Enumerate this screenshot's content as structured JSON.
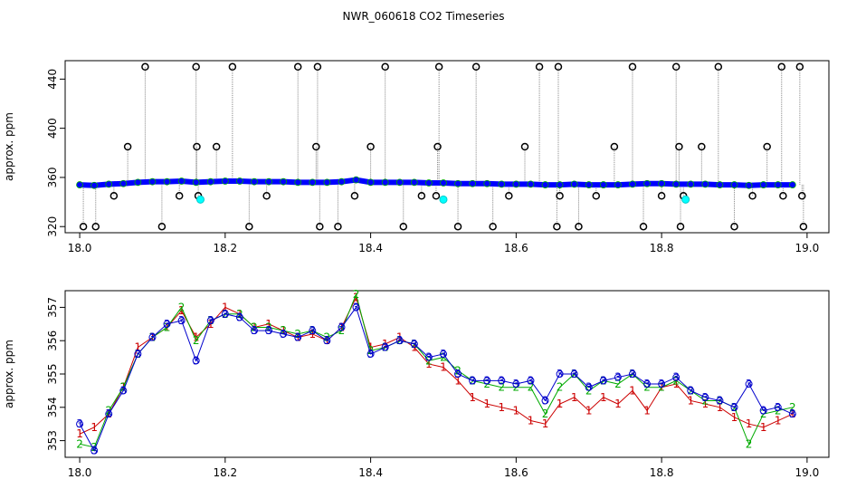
{
  "figure": {
    "title": "NWR_060618  CO2 Timeseries"
  },
  "chart_data": [
    {
      "type": "scatter",
      "xlabel": "",
      "ylabel": "approx. ppm",
      "xlim": [
        17.98,
        19.03
      ],
      "ylim": [
        315,
        455
      ],
      "xticks": [
        "18.0",
        "18.2",
        "18.4",
        "18.6",
        "18.8",
        "19.0"
      ],
      "yticks": [
        "320",
        "360",
        "400",
        "440"
      ],
      "grid": false,
      "series": [
        {
          "marker": "filled-circle",
          "color": "#0000ff",
          "x": [
            18.0,
            18.02,
            18.04,
            18.06,
            18.08,
            18.1,
            18.12,
            18.14,
            18.16,
            18.18,
            18.2,
            18.22,
            18.24,
            18.26,
            18.28,
            18.3,
            18.32,
            18.34,
            18.36,
            18.38,
            18.4,
            18.42,
            18.44,
            18.46,
            18.48,
            18.5,
            18.52,
            18.54,
            18.56,
            18.58,
            18.6,
            18.62,
            18.64,
            18.66,
            18.68,
            18.7,
            18.72,
            18.74,
            18.76,
            18.78,
            18.8,
            18.82,
            18.84,
            18.86,
            18.88,
            18.9,
            18.92,
            18.94,
            18.96,
            18.98
          ],
          "y": [
            354,
            353.5,
            354.5,
            355,
            356,
            356.5,
            356.5,
            357,
            356,
            356.5,
            357,
            357,
            356.5,
            356.5,
            356.5,
            356,
            356,
            356,
            356.5,
            358,
            356,
            356,
            356,
            356,
            355.5,
            355.5,
            355,
            355,
            355,
            354.5,
            354.5,
            354.5,
            354,
            354,
            354.5,
            354,
            354,
            354,
            354.5,
            355,
            355,
            354.5,
            354.5,
            354.5,
            354,
            354,
            353.5,
            354,
            354,
            354
          ]
        },
        {
          "marker": "open-circle",
          "color": "#000000",
          "x": [
            18.005,
            18.022,
            18.047,
            18.066,
            18.09,
            18.113,
            18.137,
            18.16,
            18.161,
            18.163,
            18.188,
            18.21,
            18.233,
            18.257,
            18.3,
            18.325,
            18.327,
            18.33,
            18.355,
            18.378,
            18.4,
            18.42,
            18.445,
            18.47,
            18.49,
            18.492,
            18.494,
            18.52,
            18.545,
            18.568,
            18.59,
            18.612,
            18.632,
            18.656,
            18.658,
            18.66,
            18.686,
            18.71,
            18.735,
            18.76,
            18.775,
            18.8,
            18.82,
            18.824,
            18.826,
            18.83,
            18.855,
            18.878,
            18.9,
            18.925,
            18.945,
            18.965,
            18.967,
            18.99,
            18.993,
            18.995
          ],
          "y": [
            320,
            320,
            345,
            385,
            450,
            320,
            345,
            450,
            385,
            345,
            385,
            450,
            320,
            345,
            450,
            385,
            450,
            320,
            320,
            345,
            385,
            450,
            320,
            345,
            345,
            385,
            450,
            320,
            450,
            320,
            345,
            385,
            450,
            320,
            450,
            345,
            320,
            345,
            385,
            450,
            320,
            345,
            450,
            385,
            320,
            345,
            385,
            450,
            320,
            345,
            385,
            450,
            345,
            450,
            345,
            320
          ]
        },
        {
          "marker": "filled-circle",
          "color": "#00ffff",
          "x": [
            18.166,
            18.5,
            18.833
          ],
          "y": [
            342,
            342,
            342
          ]
        }
      ]
    },
    {
      "type": "line",
      "xlabel": "",
      "ylabel": "approx. ppm",
      "xlim": [
        17.98,
        19.03
      ],
      "ylim": [
        352.5,
        357.5
      ],
      "xticks": [
        "18.0",
        "18.2",
        "18.4",
        "18.6",
        "18.8",
        "19.0"
      ],
      "yticks": [
        "353",
        "354",
        "355",
        "356",
        "357"
      ],
      "grid": false,
      "series": [
        {
          "marker_label": "1",
          "color": "#cc0000",
          "x": [
            18.0,
            18.02,
            18.04,
            18.06,
            18.08,
            18.1,
            18.12,
            18.14,
            18.16,
            18.18,
            18.2,
            18.22,
            18.24,
            18.26,
            18.28,
            18.3,
            18.32,
            18.34,
            18.36,
            18.38,
            18.4,
            18.42,
            18.44,
            18.46,
            18.48,
            18.5,
            18.52,
            18.54,
            18.56,
            18.58,
            18.6,
            18.62,
            18.64,
            18.66,
            18.68,
            18.7,
            18.72,
            18.74,
            18.76,
            18.78,
            18.8,
            18.82,
            18.84,
            18.86,
            18.88,
            18.9,
            18.92,
            18.94,
            18.96,
            18.98
          ],
          "y": [
            353.2,
            353.4,
            353.8,
            354.6,
            355.8,
            356.1,
            356.4,
            356.9,
            356.1,
            356.5,
            357.0,
            356.8,
            356.4,
            356.5,
            356.3,
            356.1,
            356.2,
            356.0,
            356.4,
            357.3,
            355.8,
            355.9,
            356.1,
            355.8,
            355.3,
            355.2,
            354.8,
            354.3,
            354.1,
            354.0,
            353.9,
            353.6,
            353.5,
            354.1,
            354.3,
            353.9,
            354.3,
            354.1,
            354.5,
            353.9,
            354.6,
            354.7,
            354.2,
            354.1,
            354.0,
            353.7,
            353.5,
            353.4,
            353.6,
            353.8
          ]
        },
        {
          "marker_label": "2",
          "color": "#00aa00",
          "x": [
            18.0,
            18.02,
            18.04,
            18.06,
            18.08,
            18.1,
            18.12,
            18.14,
            18.16,
            18.18,
            18.2,
            18.22,
            18.24,
            18.26,
            18.28,
            18.3,
            18.32,
            18.34,
            18.36,
            18.38,
            18.4,
            18.42,
            18.44,
            18.46,
            18.48,
            18.5,
            18.52,
            18.54,
            18.56,
            18.58,
            18.6,
            18.62,
            18.64,
            18.66,
            18.68,
            18.7,
            18.72,
            18.74,
            18.76,
            18.78,
            18.8,
            18.82,
            18.84,
            18.86,
            18.88,
            18.9,
            18.92,
            18.94,
            18.96,
            18.98
          ],
          "y": [
            352.9,
            352.8,
            353.9,
            354.6,
            355.6,
            356.1,
            356.4,
            357.0,
            356.0,
            356.6,
            356.8,
            356.8,
            356.4,
            356.4,
            356.3,
            356.2,
            356.3,
            356.1,
            356.3,
            357.4,
            355.7,
            355.8,
            356.0,
            355.9,
            355.4,
            355.5,
            355.1,
            354.8,
            354.7,
            354.6,
            354.6,
            354.6,
            353.8,
            354.6,
            355.0,
            354.5,
            354.8,
            354.7,
            355.0,
            354.6,
            354.6,
            354.8,
            354.5,
            354.2,
            354.2,
            354.0,
            352.9,
            353.8,
            353.9,
            354.0
          ]
        },
        {
          "marker_label": "3",
          "color": "#0000cc",
          "x": [
            18.0,
            18.02,
            18.04,
            18.06,
            18.08,
            18.1,
            18.12,
            18.14,
            18.16,
            18.18,
            18.2,
            18.22,
            18.24,
            18.26,
            18.28,
            18.3,
            18.32,
            18.34,
            18.36,
            18.38,
            18.4,
            18.42,
            18.44,
            18.46,
            18.48,
            18.5,
            18.52,
            18.54,
            18.56,
            18.58,
            18.6,
            18.62,
            18.64,
            18.66,
            18.68,
            18.7,
            18.72,
            18.74,
            18.76,
            18.78,
            18.8,
            18.82,
            18.84,
            18.86,
            18.88,
            18.9,
            18.92,
            18.94,
            18.96,
            18.98
          ],
          "y": [
            353.5,
            352.7,
            353.8,
            354.5,
            355.6,
            356.1,
            356.5,
            356.6,
            355.4,
            356.6,
            356.8,
            356.7,
            356.3,
            356.3,
            356.2,
            356.1,
            356.3,
            356.0,
            356.4,
            357.0,
            355.6,
            355.8,
            356.0,
            355.9,
            355.5,
            355.6,
            355.0,
            354.8,
            354.8,
            354.8,
            354.7,
            354.8,
            354.2,
            355.0,
            355.0,
            354.6,
            354.8,
            354.9,
            355.0,
            354.7,
            354.7,
            354.9,
            354.5,
            354.3,
            354.2,
            354.0,
            354.7,
            353.9,
            354.0,
            353.8
          ]
        }
      ]
    }
  ]
}
